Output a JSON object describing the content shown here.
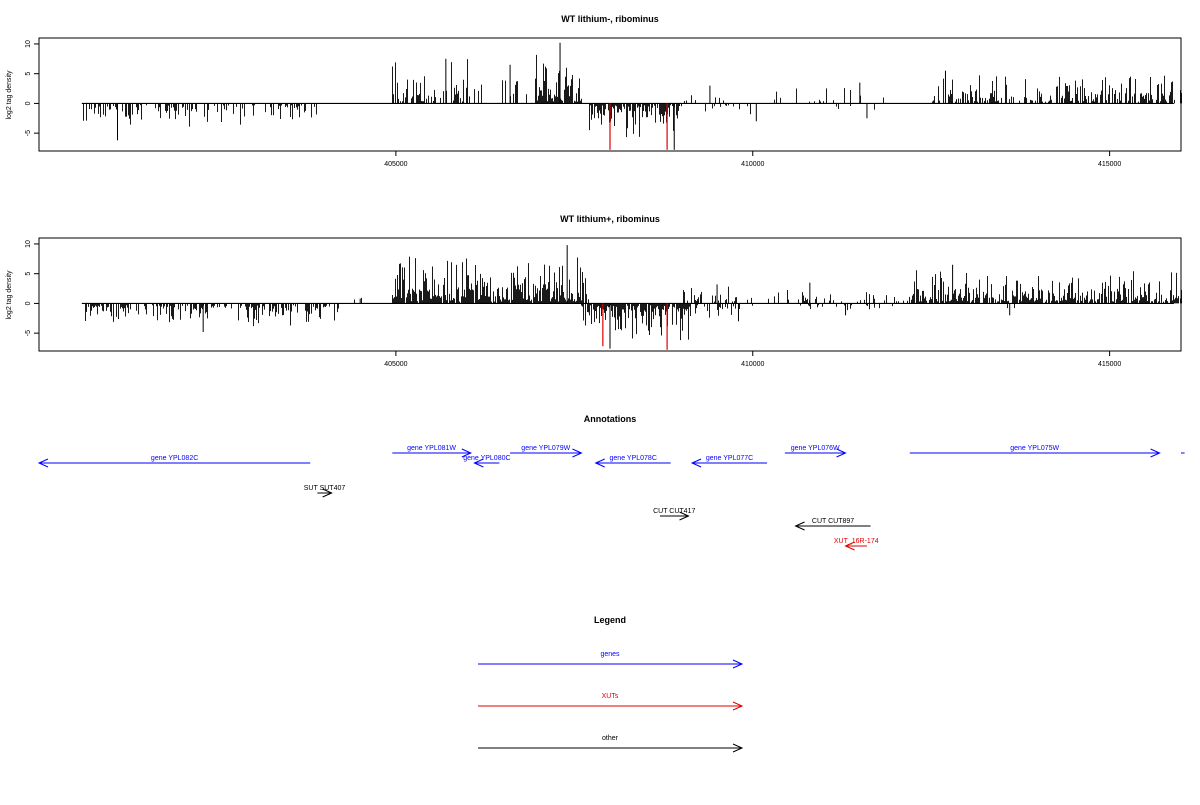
{
  "chart_data": [
    {
      "type": "bar",
      "title": "WT lithium-, ribominus",
      "ylabel": "log2 tag density",
      "xlim": [
        400000,
        416000
      ],
      "ylim": [
        -8,
        11
      ],
      "yticks": [
        -5,
        0,
        5,
        10
      ],
      "xticks": [
        405000,
        410000,
        415000
      ],
      "grid": false,
      "regions": [
        {
          "strand": "-",
          "start": 400600,
          "end": 403900,
          "max": 3.6,
          "peak": -6.2,
          "peak_at": 401100,
          "density": 0.42
        },
        {
          "strand": "+",
          "start": 404950,
          "end": 406200,
          "max": 6.5,
          "peak": 7.5,
          "peak_at": 405700,
          "density": 0.6
        },
        {
          "strand": "+",
          "start": 406450,
          "end": 406850,
          "max": 5,
          "peak": 6.5,
          "peak_at": 406600,
          "density": 0.25
        },
        {
          "strand": "+",
          "start": 406950,
          "end": 407600,
          "max": 8,
          "peak": 10.2,
          "peak_at": 407300,
          "density": 0.85
        },
        {
          "strand": "-",
          "start": 407700,
          "end": 409000,
          "max": 5,
          "peak": -7.8,
          "peak_at": 408900,
          "density": 0.8
        },
        {
          "strand": "+",
          "start": 409000,
          "end": 409600,
          "max": 2,
          "peak": 3,
          "peak_at": 409400,
          "density": 0.15
        },
        {
          "strand": "-",
          "start": 409100,
          "end": 410000,
          "max": 1.8,
          "peak": -3,
          "peak_at": 410050,
          "density": 0.15
        },
        {
          "strand": "+",
          "start": 410300,
          "end": 412000,
          "max": 2.4,
          "peak": 3.5,
          "peak_at": 411500,
          "density": 0.1
        },
        {
          "strand": "-",
          "start": 410800,
          "end": 411800,
          "max": 1.2,
          "peak": -2.5,
          "peak_at": 411600,
          "density": 0.05
        },
        {
          "strand": "+",
          "start": 412500,
          "end": 416000,
          "max": 4.5,
          "peak": 5.5,
          "peak_at": 412700,
          "density": 0.6
        }
      ],
      "highlights": [
        {
          "x": 408000,
          "y": -7.8,
          "color": "#e00000"
        },
        {
          "x": 408800,
          "y": -7.8,
          "color": "#e00000"
        }
      ]
    },
    {
      "type": "bar",
      "title": "WT lithium+, ribominus",
      "ylabel": "log2 tag density",
      "xlim": [
        400000,
        416000
      ],
      "ylim": [
        -8,
        11
      ],
      "yticks": [
        -5,
        0,
        5,
        10
      ],
      "xticks": [
        405000,
        410000,
        415000
      ],
      "grid": false,
      "regions": [
        {
          "strand": "-",
          "start": 400600,
          "end": 404200,
          "max": 3.2,
          "peak": -4.8,
          "peak_at": 402300,
          "density": 0.55
        },
        {
          "strand": "+",
          "start": 404400,
          "end": 404600,
          "max": 0.8,
          "peak": 0.8,
          "peak_at": 404500,
          "density": 0.2
        },
        {
          "strand": "+",
          "start": 404950,
          "end": 407700,
          "max": 7.5,
          "peak": 9.8,
          "peak_at": 407400,
          "density": 0.95
        },
        {
          "strand": "-",
          "start": 407600,
          "end": 409100,
          "max": 5.5,
          "peak": -7.6,
          "peak_at": 408000,
          "density": 0.9
        },
        {
          "strand": "+",
          "start": 409000,
          "end": 410000,
          "max": 2.5,
          "peak": 3.2,
          "peak_at": 409500,
          "density": 0.3
        },
        {
          "strand": "-",
          "start": 409100,
          "end": 410000,
          "max": 2,
          "peak": -3,
          "peak_at": 409800,
          "density": 0.3
        },
        {
          "strand": "+",
          "start": 410200,
          "end": 412200,
          "max": 2.2,
          "peak": 3.5,
          "peak_at": 410800,
          "density": 0.2
        },
        {
          "strand": "-",
          "start": 410600,
          "end": 412000,
          "max": 1.2,
          "peak": -2,
          "peak_at": 411300,
          "density": 0.15
        },
        {
          "strand": "+",
          "start": 412200,
          "end": 416000,
          "max": 5.2,
          "peak": 6.5,
          "peak_at": 412800,
          "density": 0.8
        },
        {
          "strand": "-",
          "start": 413500,
          "end": 413700,
          "max": 1,
          "peak": -2,
          "peak_at": 413600,
          "density": 0.2
        }
      ],
      "highlights": [
        {
          "x": 407900,
          "y": -7.2,
          "color": "#e00000"
        },
        {
          "x": 408800,
          "y": -7.8,
          "color": "#e00000"
        }
      ]
    }
  ],
  "annotations": {
    "title": "Annotations",
    "features": [
      {
        "label": "gene YPL082C",
        "start": 400000,
        "end": 403800,
        "strand": "-",
        "row": 1,
        "color": "#0000ff"
      },
      {
        "label": "gene YPL081W",
        "start": 404950,
        "end": 406050,
        "strand": "+",
        "row": 0,
        "color": "#0000ff"
      },
      {
        "label": "gene YPL080C",
        "start": 406100,
        "end": 406450,
        "strand": "-",
        "row": 1,
        "color": "#0000ff"
      },
      {
        "label": "gene YPL079W",
        "start": 406600,
        "end": 407600,
        "strand": "+",
        "row": 0,
        "color": "#0000ff"
      },
      {
        "label": "gene YPL078C",
        "start": 407800,
        "end": 408850,
        "strand": "-",
        "row": 1,
        "color": "#0000ff"
      },
      {
        "label": "gene YPL077C",
        "start": 409150,
        "end": 410200,
        "strand": "-",
        "row": 1,
        "color": "#0000ff"
      },
      {
        "label": "gene YPL076W",
        "start": 410450,
        "end": 411300,
        "strand": "+",
        "row": 0,
        "color": "#0000ff"
      },
      {
        "label": "gene YPL075W",
        "start": 412200,
        "end": 415700,
        "strand": "+",
        "row": 0,
        "color": "#0000ff"
      },
      {
        "label": "",
        "start": 416050,
        "end": 416800,
        "strand": "",
        "row": 0,
        "color": "#0000ff"
      },
      {
        "label": "SUT SUT407",
        "start": 403900,
        "end": 404100,
        "strand": "+",
        "row": 3,
        "color": "#000000"
      },
      {
        "label": "CUT CUT417",
        "start": 408700,
        "end": 409100,
        "strand": "+",
        "row": 4,
        "color": "#000000"
      },
      {
        "label": "CUT CUT897",
        "start": 410600,
        "end": 411650,
        "strand": "-",
        "row": 5,
        "color": "#000000"
      },
      {
        "label": "XUT_16R-174",
        "start": 411300,
        "end": 411600,
        "strand": "-",
        "row": 6,
        "color": "#e00000"
      }
    ]
  },
  "legend": {
    "title": "Legend",
    "items": [
      {
        "label": "genes",
        "color": "#0000ff"
      },
      {
        "label": "XUTs",
        "color": "#e00000"
      },
      {
        "label": "other",
        "color": "#000000"
      }
    ]
  }
}
